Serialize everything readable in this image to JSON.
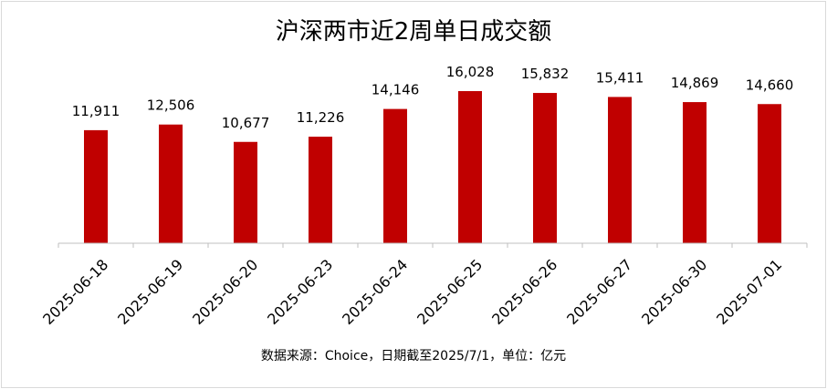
{
  "chart_data": {
    "type": "bar",
    "title": "沪深两市近2周单日成交额",
    "categories": [
      "2025-06-18",
      "2025-06-19",
      "2025-06-20",
      "2025-06-23",
      "2025-06-24",
      "2025-06-25",
      "2025-06-26",
      "2025-06-27",
      "2025-06-30",
      "2025-07-01"
    ],
    "values": [
      11911,
      12506,
      10677,
      11226,
      14146,
      16028,
      15832,
      15411,
      14869,
      14660
    ],
    "value_labels": [
      "11,911",
      "12,506",
      "10,677",
      "11,226",
      "14,146",
      "16,028",
      "15,832",
      "15,411",
      "14,869",
      "14,660"
    ],
    "xlabel": "",
    "ylabel": "",
    "y_axis_visible": false,
    "grid": false,
    "legend": "none",
    "bar_color": "#C00000"
  },
  "source_note": "数据来源：Choice，日期截至2025/7/1，单位：亿元"
}
